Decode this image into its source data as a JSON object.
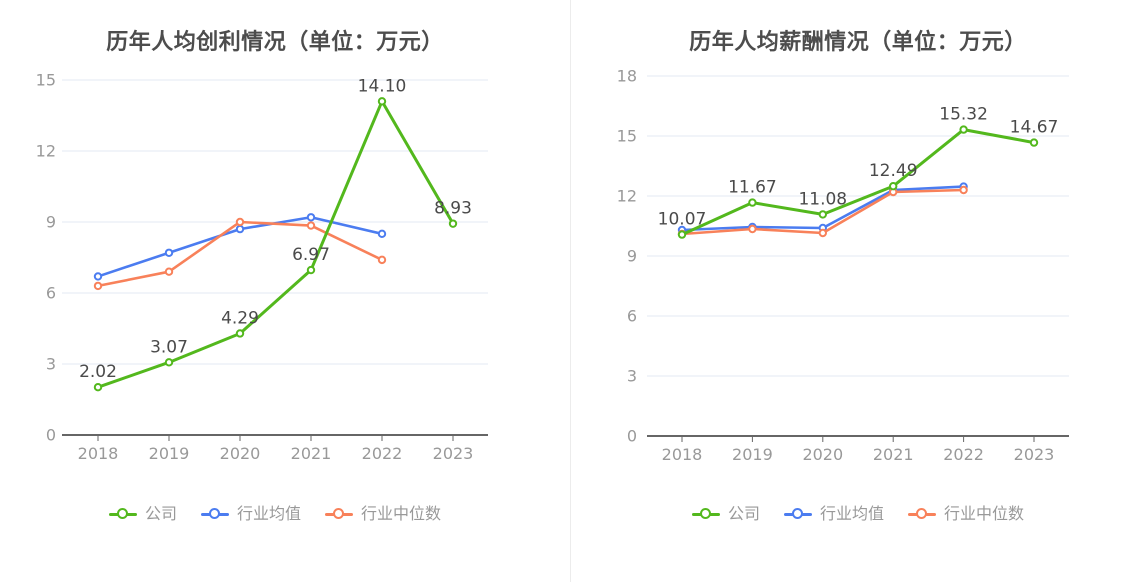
{
  "colors": {
    "company": "#53b81d",
    "industry_avg": "#4b7cf0",
    "industry_median": "#f8815a",
    "title_text": "#4d4d4d",
    "axis_label": "#999999",
    "axis_line": "#666666",
    "gridline": "#e3e9f3",
    "data_label": "#4a4a4a",
    "divider": "#ececec"
  },
  "chart_data": [
    {
      "type": "line",
      "title": "历年人均创利情况（单位：万元）",
      "categories": [
        "2018",
        "2019",
        "2020",
        "2021",
        "2022",
        "2023"
      ],
      "series": [
        {
          "name": "公司",
          "color": "#53b81d",
          "values": [
            2.02,
            3.07,
            4.29,
            6.97,
            14.1,
            8.93
          ],
          "labels": [
            "2.02",
            "3.07",
            "4.29",
            "6.97",
            "14.10",
            "8.93"
          ]
        },
        {
          "name": "行业均值",
          "color": "#4b7cf0",
          "values": [
            6.7,
            7.7,
            8.7,
            9.2,
            8.5,
            null
          ]
        },
        {
          "name": "行业中位数",
          "color": "#f8815a",
          "values": [
            6.3,
            6.9,
            9.0,
            8.85,
            7.4,
            null
          ]
        }
      ],
      "ylim": [
        0,
        15
      ],
      "ytick_step": 3,
      "grid": true,
      "legend_position": "bottom"
    },
    {
      "type": "line",
      "title": "历年人均薪酬情况（单位：万元）",
      "categories": [
        "2018",
        "2019",
        "2020",
        "2021",
        "2022",
        "2023"
      ],
      "series": [
        {
          "name": "公司",
          "color": "#53b81d",
          "values": [
            10.07,
            11.67,
            11.08,
            12.49,
            15.32,
            14.67
          ],
          "labels": [
            "10.07",
            "11.67",
            "11.08",
            "12.49",
            "15.32",
            "14.67"
          ]
        },
        {
          "name": "行业均值",
          "color": "#4b7cf0",
          "values": [
            10.3,
            10.45,
            10.4,
            12.3,
            12.47,
            null
          ]
        },
        {
          "name": "行业中位数",
          "color": "#f8815a",
          "values": [
            10.1,
            10.35,
            10.15,
            12.2,
            12.3,
            null
          ]
        }
      ],
      "ylim": [
        0,
        18
      ],
      "ytick_step": 3,
      "grid": true,
      "legend_position": "bottom"
    }
  ]
}
